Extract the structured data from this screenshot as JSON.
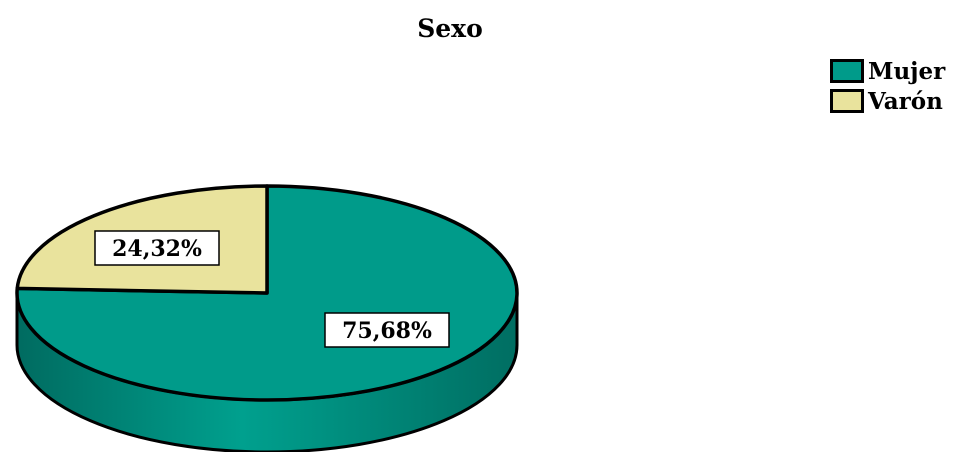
{
  "chart_data": {
    "type": "pie",
    "title": "Sexo",
    "categories": [
      "Mujer",
      "Varón"
    ],
    "values": [
      75.68,
      24.32
    ],
    "data_labels": [
      "75,68%",
      "24,32%"
    ],
    "colors": [
      "#009b8a",
      "#e9e39d"
    ],
    "legend_position": "top-right",
    "three_d": true
  }
}
